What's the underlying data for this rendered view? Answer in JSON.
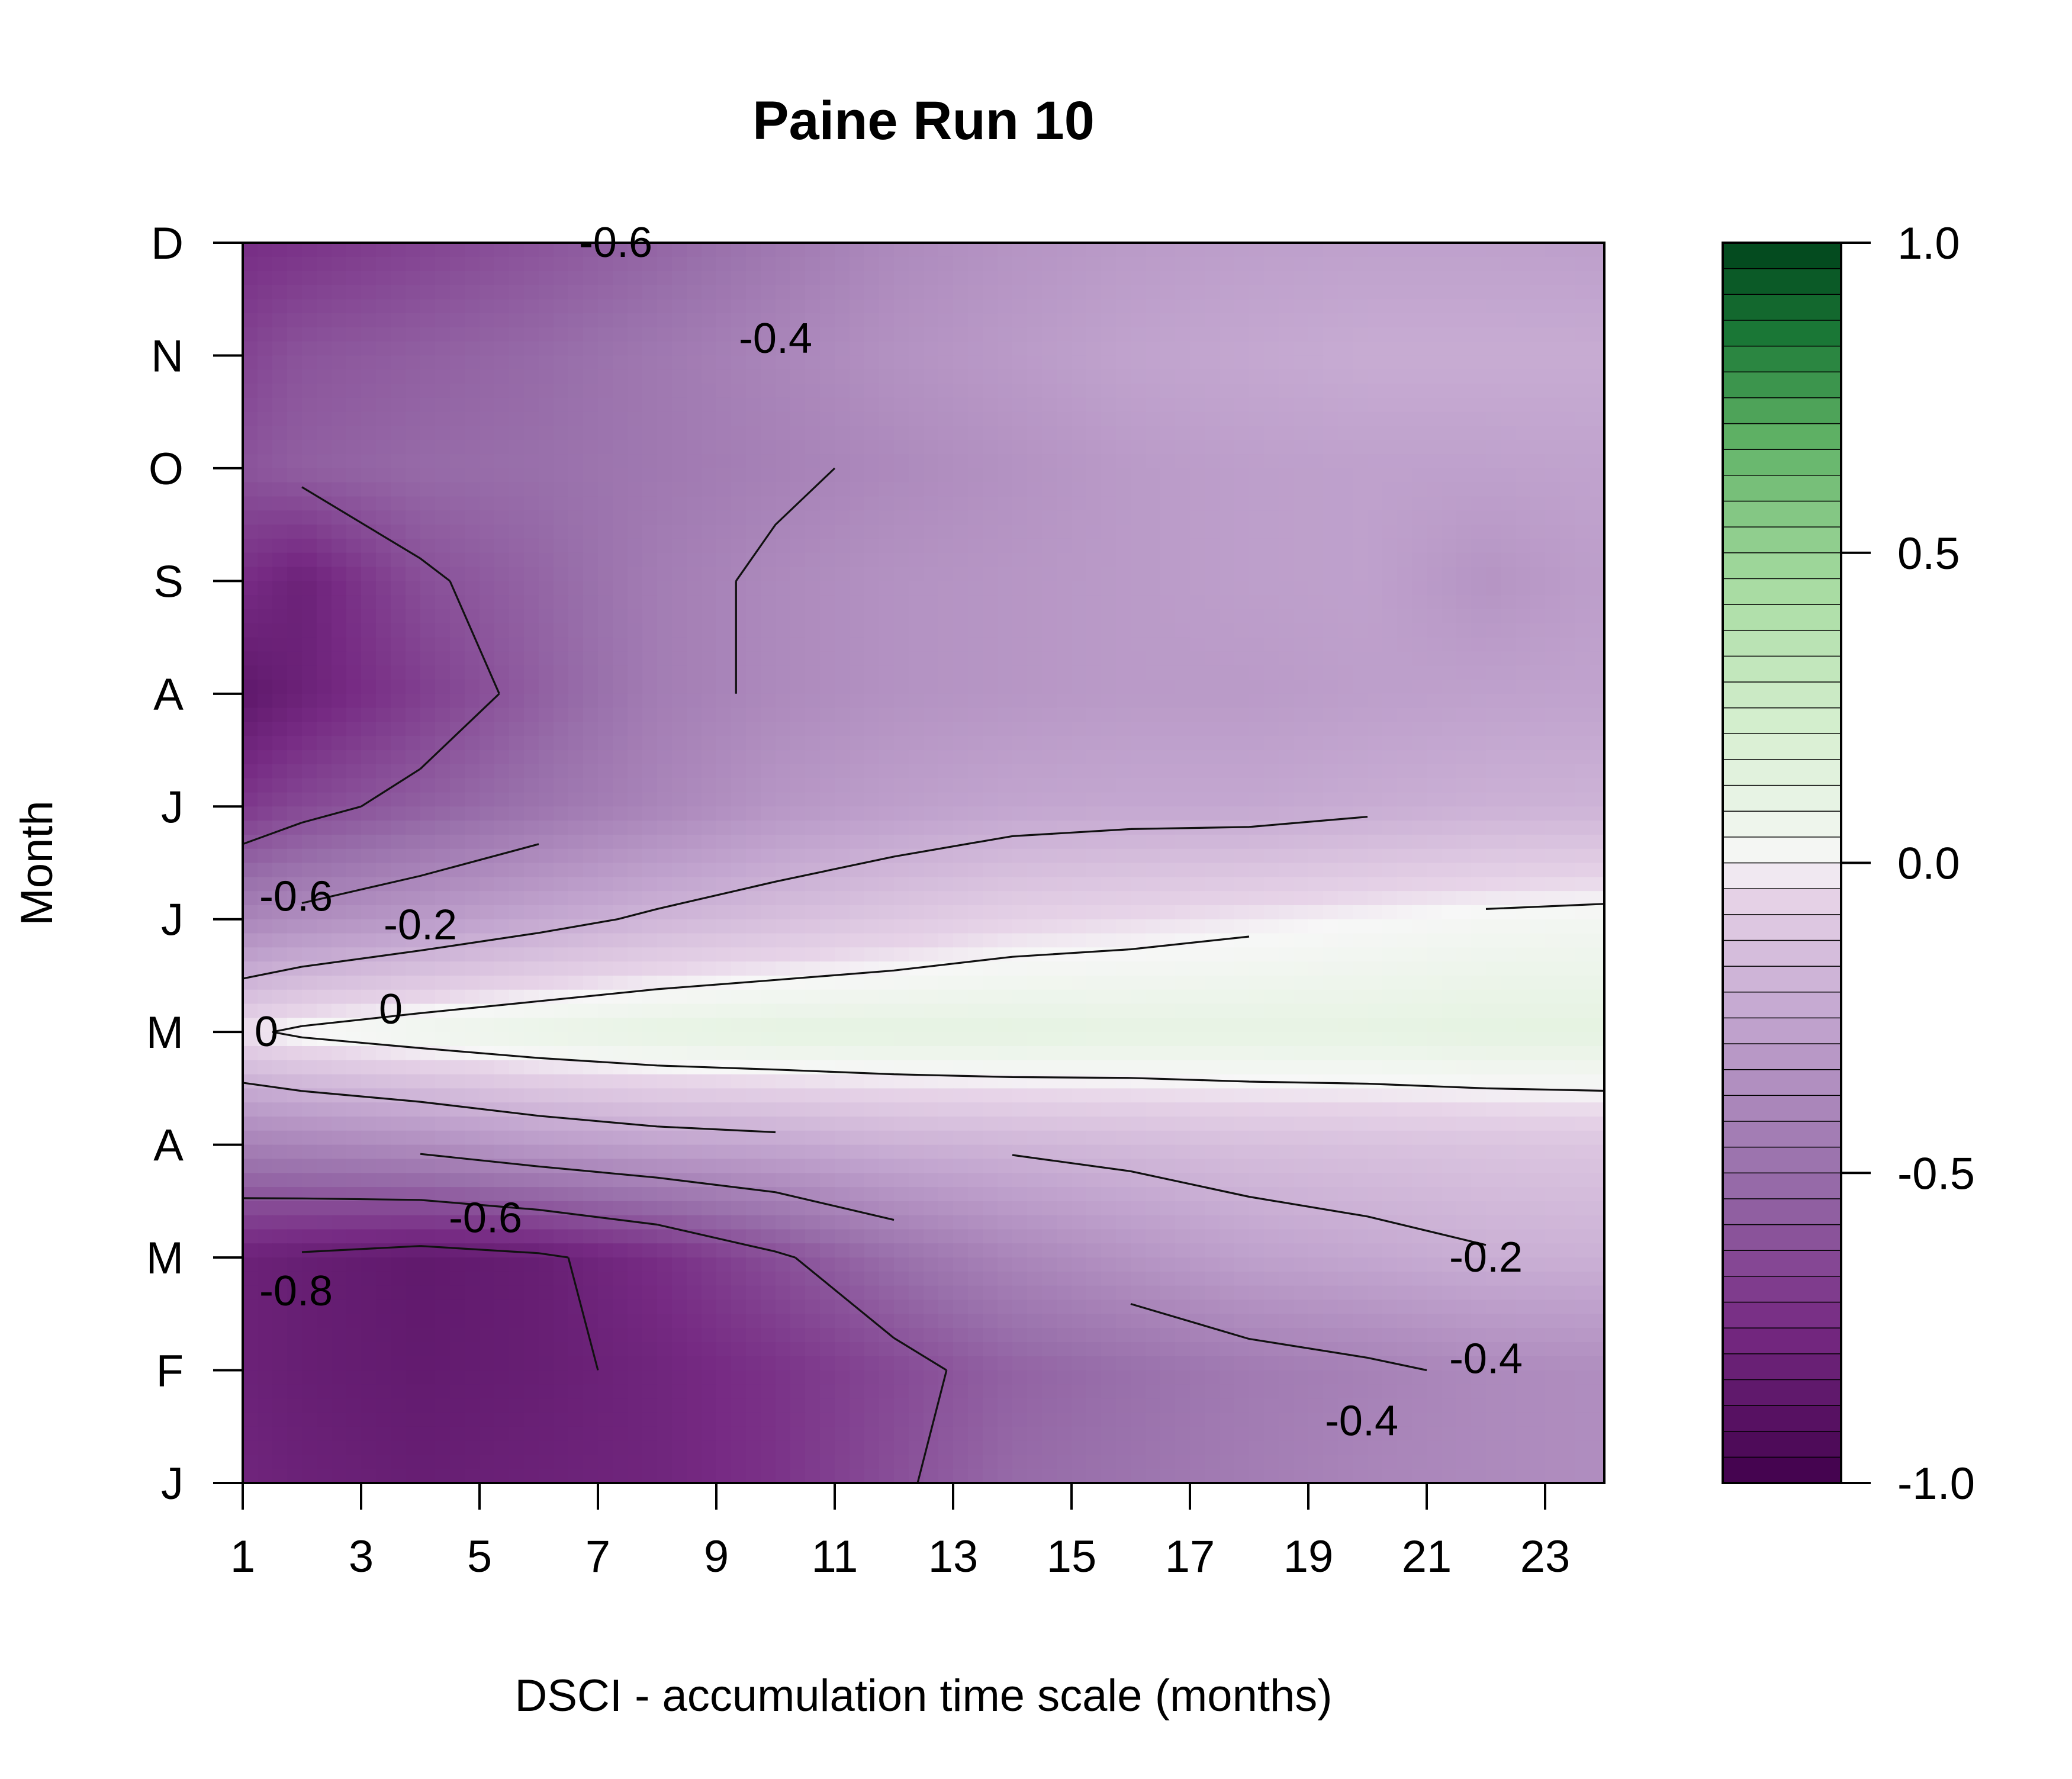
{
  "chart_data": {
    "type": "heatmap",
    "subtype": "filled-contour",
    "title": "Paine Run 10",
    "xlabel": "DSCI - accumulation time scale (months)",
    "ylabel": "Month",
    "xlim": [
      1,
      24
    ],
    "x_ticks": [
      1,
      3,
      5,
      7,
      9,
      11,
      13,
      15,
      17,
      19,
      21,
      23
    ],
    "x_tick_labels": [
      "1",
      "3",
      "5",
      "7",
      "9",
      "11",
      "13",
      "15",
      "17",
      "19",
      "21",
      "23"
    ],
    "y_tick_labels": [
      "J",
      "F",
      "M",
      "A",
      "M",
      "J",
      "J",
      "A",
      "S",
      "O",
      "N",
      "D"
    ],
    "y_months": [
      "Jan",
      "Feb",
      "Mar",
      "Apr",
      "May",
      "Jun",
      "Jul",
      "Aug",
      "Sep",
      "Oct",
      "Nov",
      "Dec"
    ],
    "zlim": [
      -1.0,
      1.0
    ],
    "colorbar": {
      "ticks": [
        -1.0,
        -0.5,
        0.0,
        0.5,
        1.0
      ],
      "tick_labels": [
        "-1.0",
        "-0.5",
        "0.0",
        "0.5",
        "1.0"
      ],
      "low_color": "#40004b",
      "mid_color": "#f7f7f7",
      "high_color": "#00441b",
      "n_levels": 48
    },
    "x": [
      1,
      2,
      4,
      6,
      8,
      10,
      12,
      14,
      16,
      18,
      20,
      22,
      24
    ],
    "z_rows": [
      [
        -0.78,
        -0.8,
        -0.82,
        -0.8,
        -0.78,
        -0.72,
        -0.62,
        -0.52,
        -0.48,
        -0.44,
        -0.4,
        -0.38,
        -0.36
      ],
      [
        -0.8,
        -0.82,
        -0.84,
        -0.82,
        -0.78,
        -0.72,
        -0.64,
        -0.55,
        -0.5,
        -0.45,
        -0.42,
        -0.38,
        -0.36
      ],
      [
        -0.8,
        -0.82,
        -0.85,
        -0.82,
        -0.74,
        -0.62,
        -0.5,
        -0.4,
        -0.33,
        -0.27,
        -0.24,
        -0.21,
        -0.2
      ],
      [
        -0.42,
        -0.4,
        -0.36,
        -0.3,
        -0.26,
        -0.24,
        -0.2,
        -0.18,
        -0.16,
        -0.14,
        -0.13,
        -0.12,
        -0.11
      ],
      [
        -0.02,
        0.02,
        0.06,
        0.09,
        0.11,
        0.12,
        0.12,
        0.12,
        0.11,
        0.11,
        0.11,
        0.12,
        0.12
      ],
      [
        -0.4,
        -0.36,
        -0.3,
        -0.24,
        -0.18,
        -0.14,
        -0.1,
        -0.06,
        -0.04,
        -0.02,
        0.0,
        0.02,
        0.03
      ],
      [
        -0.7,
        -0.64,
        -0.56,
        -0.48,
        -0.4,
        -0.32,
        -0.28,
        -0.25,
        -0.24,
        -0.24,
        -0.22,
        -0.2,
        -0.19
      ],
      [
        -0.86,
        -0.8,
        -0.68,
        -0.56,
        -0.44,
        -0.38,
        -0.34,
        -0.32,
        -0.3,
        -0.3,
        -0.28,
        -0.27,
        -0.26
      ],
      [
        -0.74,
        -0.8,
        -0.62,
        -0.54,
        -0.44,
        -0.38,
        -0.34,
        -0.32,
        -0.3,
        -0.28,
        -0.27,
        -0.33,
        -0.28
      ],
      [
        -0.6,
        -0.56,
        -0.52,
        -0.5,
        -0.46,
        -0.42,
        -0.38,
        -0.34,
        -0.3,
        -0.28,
        -0.27,
        -0.27,
        -0.26
      ],
      [
        -0.66,
        -0.6,
        -0.56,
        -0.52,
        -0.46,
        -0.4,
        -0.34,
        -0.3,
        -0.26,
        -0.24,
        -0.22,
        -0.22,
        -0.22
      ],
      [
        -0.74,
        -0.72,
        -0.66,
        -0.6,
        -0.54,
        -0.46,
        -0.38,
        -0.33,
        -0.3,
        -0.28,
        -0.27,
        -0.27,
        -0.28
      ]
    ],
    "contour_levels": [
      -0.8,
      -0.6,
      -0.4,
      -0.2,
      0
    ],
    "contour_labels": [
      {
        "text": "-0.6",
        "x": 7.3,
        "month": 12.0
      },
      {
        "text": "-0.4",
        "x": 10.0,
        "month": 11.15
      },
      {
        "text": "-0.6",
        "x": 1.9,
        "month": 6.2
      },
      {
        "text": "-0.2",
        "x": 4.0,
        "month": 5.95
      },
      {
        "text": "0",
        "x": 3.5,
        "month": 5.2
      },
      {
        "text": "0",
        "x": 1.4,
        "month": 5.0
      },
      {
        "text": "-0.6",
        "x": 5.1,
        "month": 3.35
      },
      {
        "text": "-0.8",
        "x": 1.9,
        "month": 2.7
      },
      {
        "text": "-0.2",
        "x": 22.0,
        "month": 3.0
      },
      {
        "text": "-0.4",
        "x": 22.0,
        "month": 2.1
      },
      {
        "text": "-0.4",
        "x": 19.9,
        "month": 1.55
      }
    ]
  }
}
